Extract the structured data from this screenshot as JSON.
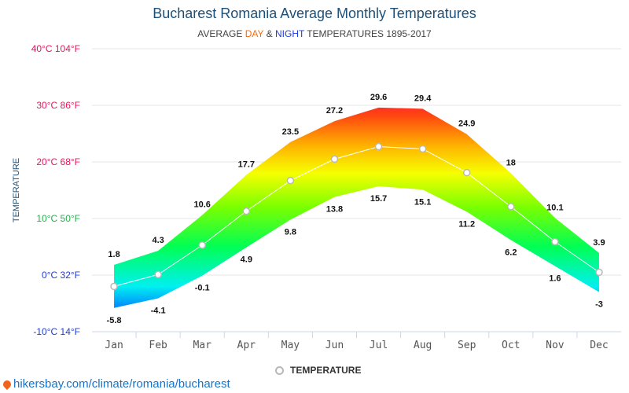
{
  "header": {
    "title": "Bucharest Romania Average Monthly Temperatures",
    "subtitle_prefix": "AVERAGE ",
    "subtitle_day": "DAY",
    "subtitle_amp": " & ",
    "subtitle_night": "NIGHT",
    "subtitle_suffix": " TEMPERATURES 1895-2017"
  },
  "legend": {
    "label": "TEMPERATURE"
  },
  "source": {
    "text": "hikersbay.com/climate/romania/bucharest"
  },
  "colors": {
    "title": "#1d5079",
    "day": "#ff6a00",
    "night": "#1f3bd9",
    "grid": "#e6e6e6",
    "line": "#ffffff",
    "marker": "#b8b8b8",
    "warm_label": "#e8155a",
    "cool_label": "#23b14d",
    "cold_label": "#1f3bd9"
  },
  "chart_data": {
    "type": "area",
    "categories": [
      "Jan",
      "Feb",
      "Mar",
      "Apr",
      "May",
      "Jun",
      "Jul",
      "Aug",
      "Sep",
      "Oct",
      "Nov",
      "Dec"
    ],
    "series": [
      {
        "name": "DAY",
        "values": [
          1.8,
          4.3,
          10.6,
          17.7,
          23.5,
          27.2,
          29.6,
          29.4,
          24.9,
          18,
          10.1,
          3.9
        ]
      },
      {
        "name": "NIGHT",
        "values": [
          -5.8,
          -4.1,
          -0.1,
          4.9,
          9.8,
          13.8,
          15.7,
          15.1,
          11.2,
          6.2,
          1.6,
          -3
        ]
      },
      {
        "name": "TEMPERATURE",
        "values": [
          -2,
          0.1,
          5.3,
          11.3,
          16.7,
          20.5,
          22.7,
          22.3,
          18.1,
          12.1,
          5.9,
          0.5
        ]
      }
    ],
    "ylabel": "TEMPERATURE",
    "ylim": [
      -10,
      40
    ],
    "yticks": [
      {
        "value": 40,
        "label": "40°C 104°F"
      },
      {
        "value": 30,
        "label": "30°C 86°F"
      },
      {
        "value": 20,
        "label": "20°C 68°F"
      },
      {
        "value": 10,
        "label": "10°C 50°F"
      },
      {
        "value": 0,
        "label": "0°C 32°F"
      },
      {
        "value": -10,
        "label": "-10°C 14°F"
      }
    ],
    "grid": true,
    "legend_position": "bottom-center"
  }
}
